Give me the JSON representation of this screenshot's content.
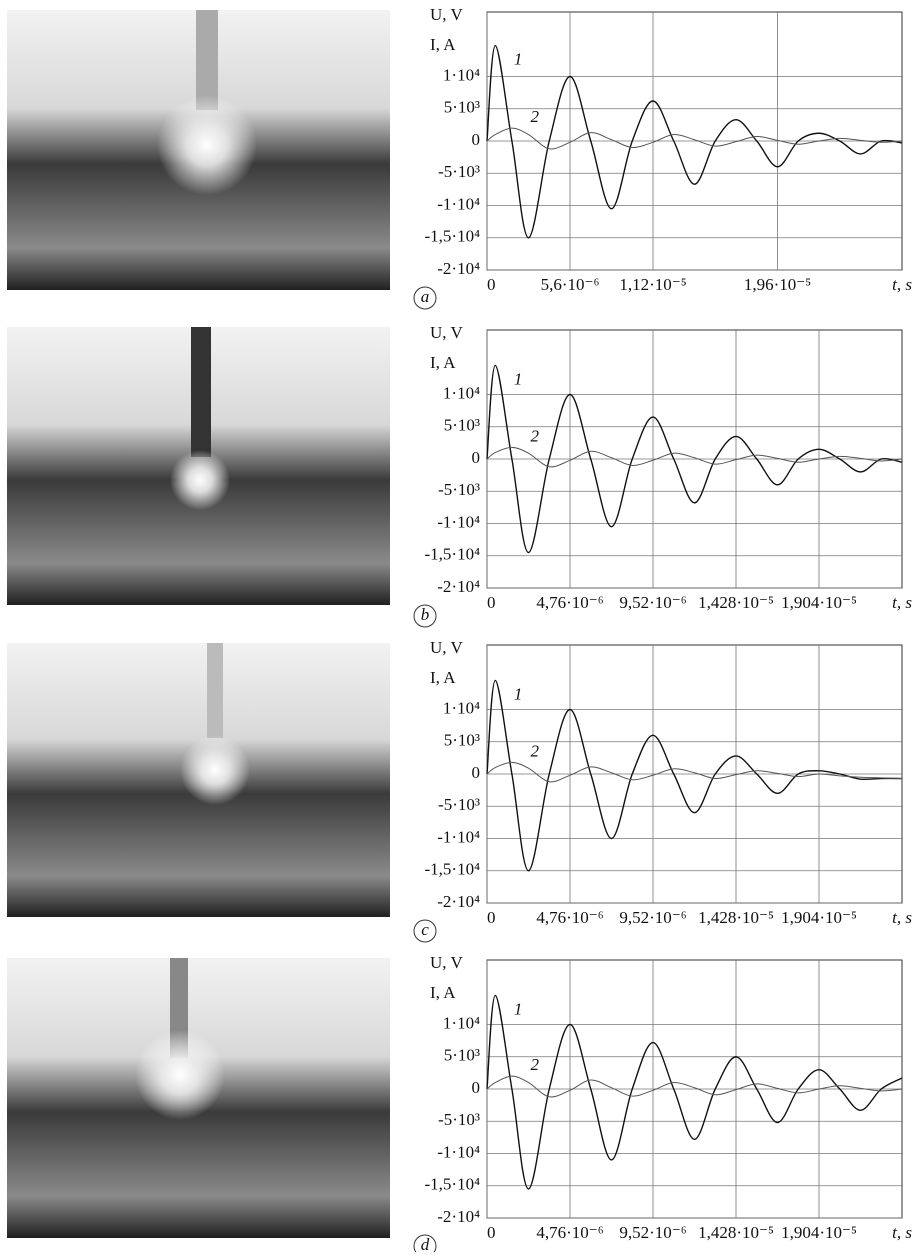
{
  "chart_data": [
    {
      "type": "line",
      "panel": "a",
      "ylabel_lines": [
        "U, V",
        "I, A"
      ],
      "xlabel": "t, s",
      "x": [
        0,
        5.6e-07,
        1.68e-06,
        2.8e-06,
        4.2e-06,
        5.6e-06,
        7e-06,
        8.4e-06,
        9.8e-06,
        1.12e-05,
        1.26e-05,
        1.4e-05,
        1.54e-05,
        1.68e-05,
        1.82e-05,
        1.96e-05,
        2.1e-05,
        2.24e-05,
        2.38e-05,
        2.52e-05,
        2.66e-05,
        2.8e-05
      ],
      "series": [
        {
          "name": "1",
          "color": "#111111",
          "values": [
            0,
            14800,
            0,
            -15000,
            0,
            10000,
            0,
            -10500,
            0,
            6200,
            0,
            -6700,
            0,
            3300,
            0,
            -4000,
            0,
            1200,
            0,
            -2000,
            0,
            -300
          ]
        },
        {
          "name": "2",
          "color": "#555555",
          "values": [
            0,
            1000,
            2000,
            1000,
            -1200,
            -200,
            1300,
            200,
            -1000,
            -200,
            1000,
            200,
            -800,
            -100,
            700,
            100,
            -500,
            0,
            400,
            100,
            -200,
            0
          ]
        }
      ],
      "xlim": [
        0,
        2.8e-05
      ],
      "xticks": [
        0,
        {
          "value": 5.6e-06,
          "label": "5,6·10⁻⁶"
        },
        {
          "value": 1.12e-05,
          "label": "1,12·10⁻⁵"
        },
        {
          "value": 1.96e-05,
          "label": "1,96·10⁻⁵"
        }
      ],
      "ylim": [
        -20000,
        20000
      ],
      "yticks": [
        {
          "value": 10000,
          "label": "1·10⁴"
        },
        {
          "value": 5000,
          "label": "5·10³"
        },
        0,
        {
          "value": -5000,
          "label": "-5·10³"
        },
        {
          "value": -10000,
          "label": "-1·10⁴"
        },
        {
          "value": -15000,
          "label": "-1,5·10⁴"
        },
        {
          "value": -20000,
          "label": "-2·10⁴"
        }
      ],
      "grid": true
    },
    {
      "type": "line",
      "panel": "b",
      "ylabel_lines": [
        "U, V",
        "I, A"
      ],
      "xlabel": "t, s",
      "x": [
        0,
        4.76e-07,
        1.428e-06,
        2.38e-06,
        3.57e-06,
        4.76e-06,
        5.95e-06,
        7.14e-06,
        8.33e-06,
        9.52e-06,
        1.071e-05,
        1.19e-05,
        1.309e-05,
        1.428e-05,
        1.547e-05,
        1.666e-05,
        1.785e-05,
        1.904e-05,
        2.023e-05,
        2.142e-05,
        2.261e-05,
        2.38e-05
      ],
      "series": [
        {
          "name": "1",
          "color": "#111111",
          "values": [
            0,
            14500,
            0,
            -14500,
            0,
            10000,
            0,
            -10500,
            0,
            6500,
            0,
            -6800,
            0,
            3500,
            0,
            -4000,
            0,
            1500,
            0,
            -2000,
            0,
            -500
          ]
        },
        {
          "name": "2",
          "color": "#555555",
          "values": [
            0,
            1000,
            1800,
            900,
            -1200,
            -200,
            1200,
            200,
            -1000,
            -200,
            900,
            200,
            -800,
            -100,
            600,
            100,
            -500,
            0,
            400,
            100,
            -300,
            0
          ]
        }
      ],
      "xlim": [
        0,
        2.38e-05
      ],
      "xticks": [
        0,
        {
          "value": 4.76e-06,
          "label": "4,76·10⁻⁶"
        },
        {
          "value": 9.52e-06,
          "label": "9,52·10⁻⁶"
        },
        {
          "value": 1.428e-05,
          "label": "1,428·10⁻⁵"
        },
        {
          "value": 1.904e-05,
          "label": "1,904·10⁻⁵"
        }
      ],
      "ylim": [
        -20000,
        20000
      ],
      "yticks": [
        {
          "value": 10000,
          "label": "1·10⁴"
        },
        {
          "value": 5000,
          "label": "5·10³"
        },
        0,
        {
          "value": -5000,
          "label": "-5·10³"
        },
        {
          "value": -10000,
          "label": "-1·10⁴"
        },
        {
          "value": -15000,
          "label": "-1,5·10⁴"
        },
        {
          "value": -20000,
          "label": "-2·10⁴"
        }
      ],
      "grid": true
    },
    {
      "type": "line",
      "panel": "c",
      "ylabel_lines": [
        "U, V",
        "I, A"
      ],
      "xlabel": "t, s",
      "x": [
        0,
        4.76e-07,
        1.428e-06,
        2.38e-06,
        3.57e-06,
        4.76e-06,
        5.95e-06,
        7.14e-06,
        8.33e-06,
        9.52e-06,
        1.071e-05,
        1.19e-05,
        1.309e-05,
        1.428e-05,
        1.547e-05,
        1.666e-05,
        1.785e-05,
        1.904e-05,
        2.023e-05,
        2.142e-05,
        2.261e-05,
        2.38e-05
      ],
      "series": [
        {
          "name": "1",
          "color": "#111111",
          "values": [
            0,
            14500,
            0,
            -15000,
            0,
            10000,
            0,
            -10000,
            0,
            6000,
            0,
            -6000,
            0,
            2800,
            0,
            -3000,
            0,
            500,
            0,
            -800,
            -700,
            -700
          ]
        },
        {
          "name": "2",
          "color": "#555555",
          "values": [
            0,
            1000,
            1800,
            900,
            -1200,
            -200,
            1100,
            200,
            -900,
            -200,
            800,
            200,
            -700,
            -100,
            500,
            100,
            -400,
            0,
            -300,
            -500,
            -600,
            -700
          ]
        }
      ],
      "xlim": [
        0,
        2.38e-05
      ],
      "xticks": [
        0,
        {
          "value": 4.76e-06,
          "label": "4,76·10⁻⁶"
        },
        {
          "value": 9.52e-06,
          "label": "9,52·10⁻⁶"
        },
        {
          "value": 1.428e-05,
          "label": "1,428·10⁻⁵"
        },
        {
          "value": 1.904e-05,
          "label": "1,904·10⁻⁵"
        }
      ],
      "ylim": [
        -20000,
        20000
      ],
      "yticks": [
        {
          "value": 10000,
          "label": "1·10⁴"
        },
        {
          "value": 5000,
          "label": "5·10³"
        },
        0,
        {
          "value": -5000,
          "label": "-5·10³"
        },
        {
          "value": -10000,
          "label": "-1·10⁴"
        },
        {
          "value": -15000,
          "label": "-1,5·10⁴"
        },
        {
          "value": -20000,
          "label": "-2·10⁴"
        }
      ],
      "grid": true
    },
    {
      "type": "line",
      "panel": "d",
      "ylabel_lines": [
        "U, V",
        "I, A"
      ],
      "xlabel": "t, s",
      "x": [
        0,
        4.76e-07,
        1.428e-06,
        2.38e-06,
        3.57e-06,
        4.76e-06,
        5.95e-06,
        7.14e-06,
        8.33e-06,
        9.52e-06,
        1.071e-05,
        1.19e-05,
        1.309e-05,
        1.428e-05,
        1.547e-05,
        1.666e-05,
        1.785e-05,
        1.904e-05,
        2.023e-05,
        2.142e-05,
        2.261e-05,
        2.38e-05
      ],
      "series": [
        {
          "name": "1",
          "color": "#111111",
          "values": [
            0,
            14500,
            0,
            -15500,
            0,
            10000,
            0,
            -11000,
            0,
            7200,
            0,
            -7800,
            0,
            5000,
            0,
            -5200,
            0,
            3000,
            0,
            -3300,
            0,
            1700
          ]
        },
        {
          "name": "2",
          "color": "#555555",
          "values": [
            0,
            1000,
            2000,
            1000,
            -1200,
            -200,
            1400,
            200,
            -1100,
            -200,
            1000,
            200,
            -900,
            -100,
            800,
            100,
            -600,
            0,
            500,
            100,
            -300,
            0
          ]
        }
      ],
      "xlim": [
        0,
        2.38e-05
      ],
      "xticks": [
        0,
        {
          "value": 4.76e-06,
          "label": "4,76·10⁻⁶"
        },
        {
          "value": 9.52e-06,
          "label": "9,52·10⁻⁶"
        },
        {
          "value": 1.428e-05,
          "label": "1,428·10⁻⁵"
        },
        {
          "value": 1.904e-05,
          "label": "1,904·10⁻⁵"
        }
      ],
      "ylim": [
        -20000,
        20000
      ],
      "yticks": [
        {
          "value": 10000,
          "label": "1·10⁴"
        },
        {
          "value": 5000,
          "label": "5·10³"
        },
        0,
        {
          "value": -5000,
          "label": "-5·10³"
        },
        {
          "value": -10000,
          "label": "-1·10⁴"
        },
        {
          "value": -15000,
          "label": "-1,5·10⁴"
        },
        {
          "value": -20000,
          "label": "-2·10⁴"
        }
      ],
      "grid": true
    }
  ]
}
